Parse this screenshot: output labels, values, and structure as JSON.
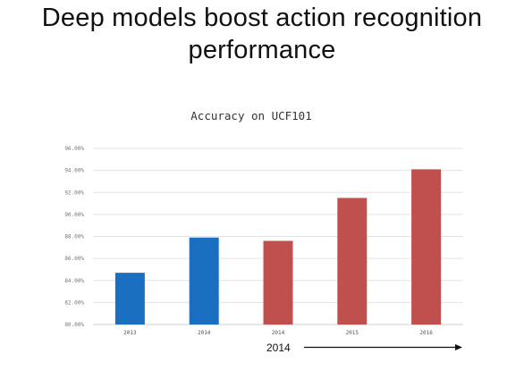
{
  "slide": {
    "title_line1": "Deep models boost action recognition",
    "title_line2": "performance"
  },
  "chart_data": {
    "type": "bar",
    "title": "Accuracy on UCF101",
    "xlabel": "",
    "ylabel": "",
    "categories": [
      "2013",
      "2014",
      "2014",
      "2015",
      "2016"
    ],
    "values": [
      84.7,
      87.9,
      87.6,
      91.5,
      94.1
    ],
    "bar_colors": [
      "#1a6fc0",
      "#1a6fc0",
      "#c0504d",
      "#c0504d",
      "#c0504d"
    ],
    "ylim": [
      80,
      96
    ],
    "yticks": [
      80,
      82,
      84,
      86,
      88,
      90,
      92,
      94,
      96
    ],
    "ytick_labels": [
      "80.00%",
      "82.00%",
      "84.00%",
      "86.00%",
      "88.00%",
      "90.00%",
      "92.00%",
      "94.00%",
      "96.00%"
    ],
    "grid": true,
    "legend": "none",
    "grid_color": "#e3e3e3",
    "axis_color": "#cfcfcf",
    "annotation": {
      "label": "2014",
      "type": "arrow-right"
    }
  }
}
